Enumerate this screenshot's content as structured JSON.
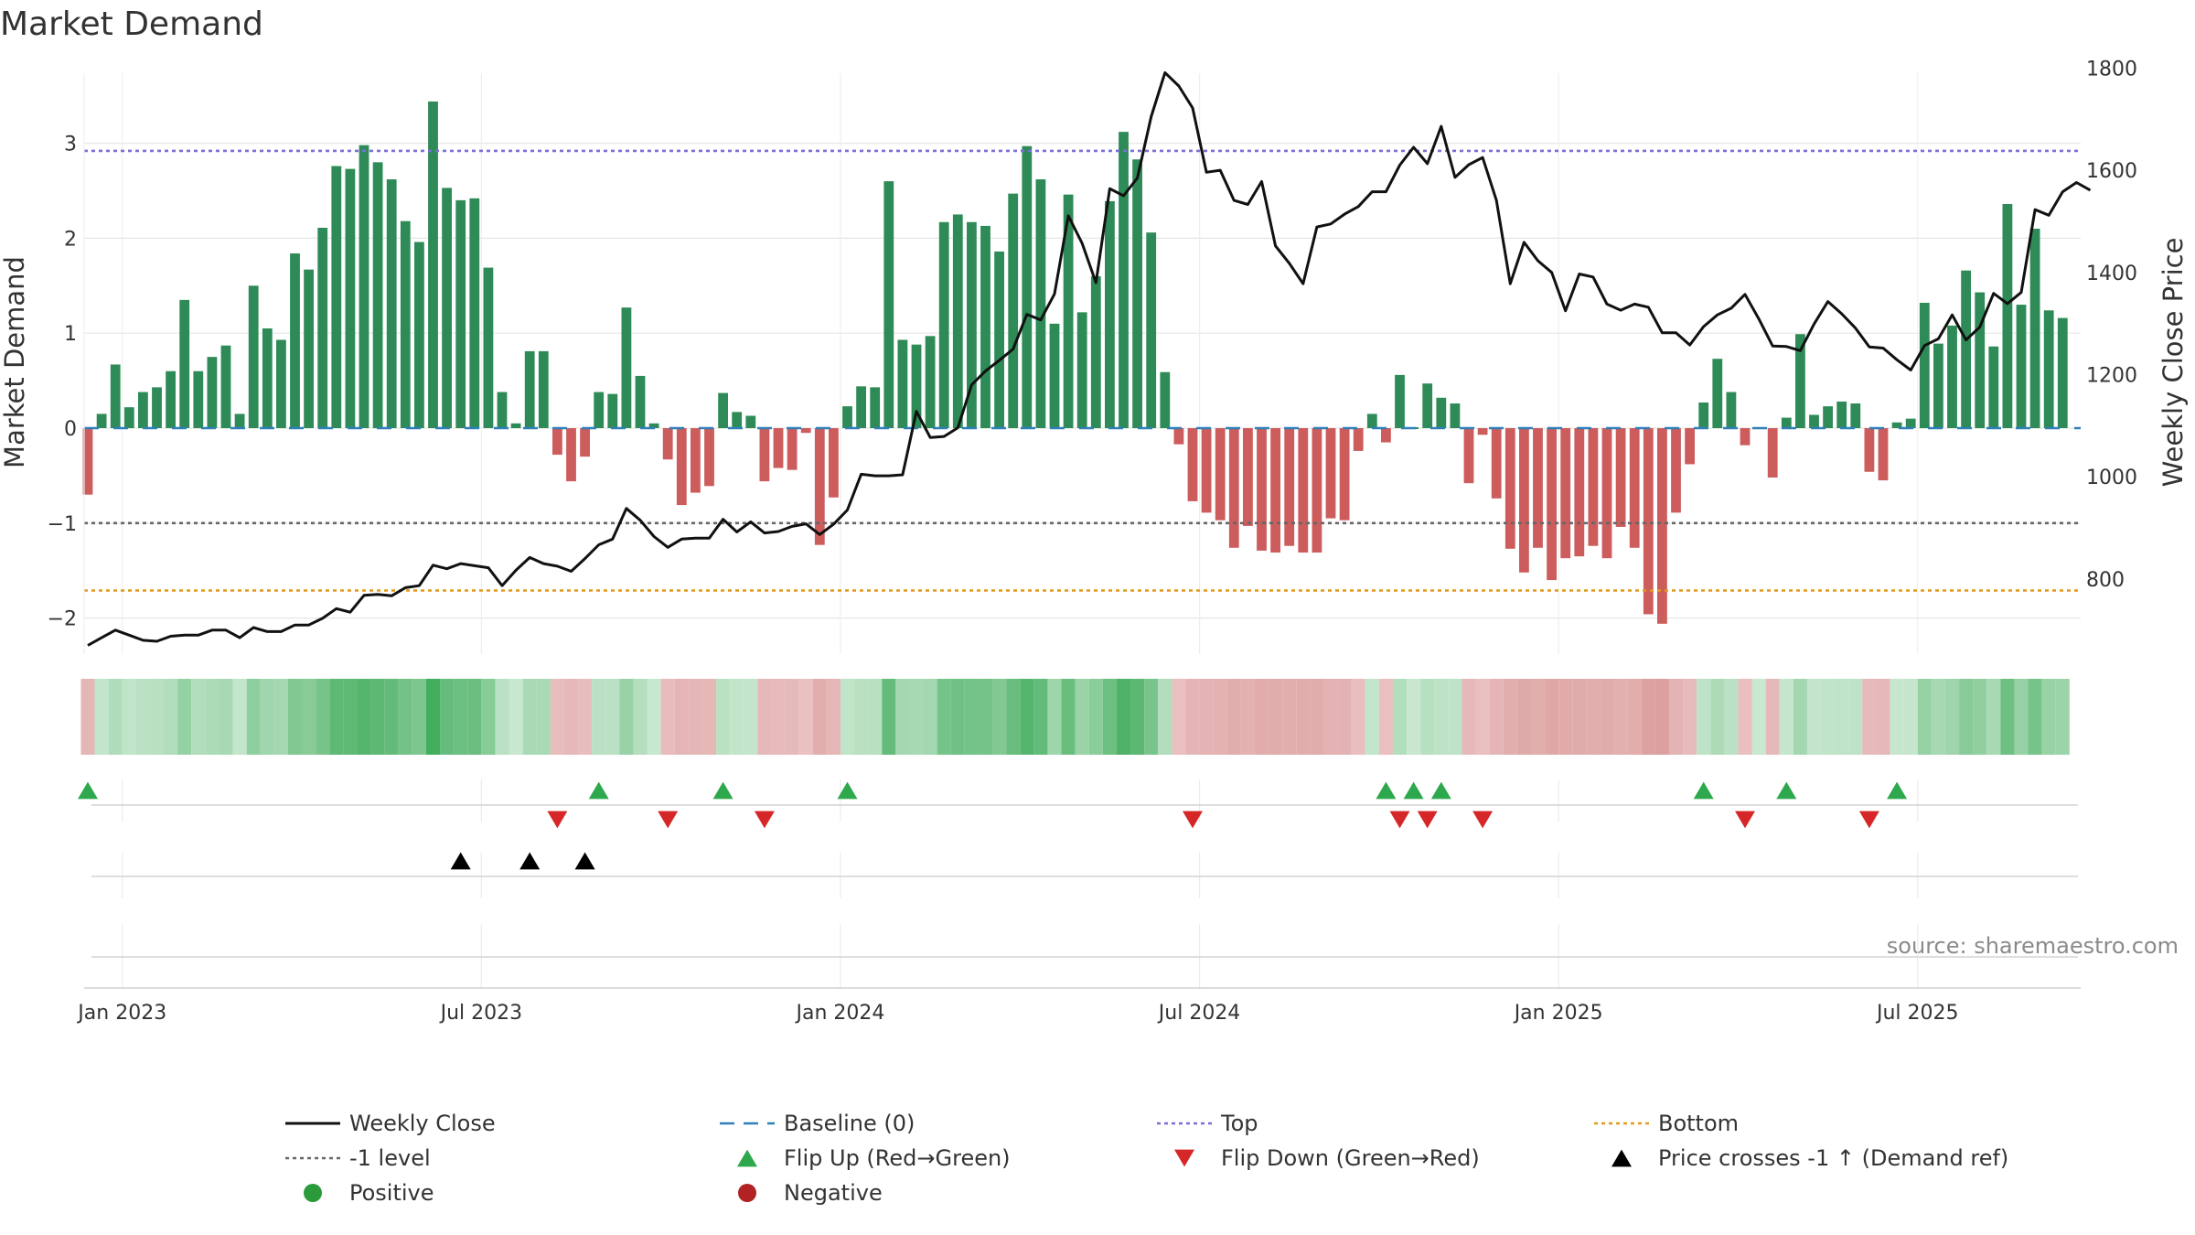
{
  "chart_data": {
    "type": "bar",
    "title": "Market Demand",
    "ylabel": "Market Demand",
    "y2label": "Weekly Close Price",
    "source": "source: sharemaestro.com",
    "ylim": [
      -2.4,
      3.6
    ],
    "y2lim": [
      653,
      1790
    ],
    "y_ticks": [
      "3",
      "2",
      "1",
      "0",
      "−1",
      "−2"
    ],
    "y_tick_values": [
      3,
      2,
      1,
      0,
      -1,
      -2
    ],
    "y2_ticks": [
      "1800",
      "1600",
      "1400",
      "1200",
      "1000",
      "800"
    ],
    "y2_tick_values": [
      1800,
      1600,
      1400,
      1200,
      1000,
      800
    ],
    "x_ticks": [
      "Jan 2023",
      "Jul 2023",
      "Jan 2024",
      "Jul 2024",
      "Jan 2025",
      "Jul 2025"
    ],
    "x_tick_weeks": [
      2.5,
      28.5,
      54.5,
      80.5,
      106.5,
      132.5
    ],
    "x_domain_weeks": [
      -0.5,
      142.5
    ],
    "reference_lines": {
      "top": 2.92,
      "minus_one": -1.0,
      "bottom": -1.71,
      "baseline": 0
    },
    "demand": [
      -0.7,
      0.15,
      0.67,
      0.22,
      0.38,
      0.43,
      0.6,
      1.35,
      0.6,
      0.75,
      0.87,
      0.15,
      1.5,
      1.05,
      0.93,
      1.84,
      1.67,
      2.11,
      2.76,
      2.73,
      2.98,
      2.8,
      2.62,
      2.18,
      1.96,
      3.44,
      2.53,
      2.4,
      2.42,
      1.69,
      0.38,
      0.05,
      0.81,
      0.81,
      -0.28,
      -0.56,
      -0.3,
      0.38,
      0.36,
      1.27,
      0.55,
      0.05,
      -0.33,
      -0.81,
      -0.68,
      -0.61,
      0.37,
      0.17,
      0.13,
      -0.56,
      -0.42,
      -0.44,
      -0.05,
      -1.23,
      -0.73,
      0.23,
      0.44,
      0.43,
      2.6,
      0.93,
      0.88,
      0.97,
      2.17,
      2.25,
      2.17,
      2.13,
      1.86,
      2.47,
      2.97,
      2.62,
      1.1,
      2.46,
      1.22,
      1.6,
      2.39,
      3.12,
      2.83,
      2.06,
      0.59,
      -0.17,
      -0.77,
      -0.89,
      -0.97,
      -1.26,
      -1.03,
      -1.29,
      -1.31,
      -1.24,
      -1.31,
      -1.31,
      -0.95,
      -0.97,
      -0.24,
      0.15,
      -0.15,
      0.56,
      0.01,
      0.47,
      0.32,
      0.26,
      -0.58,
      -0.07,
      -0.74,
      -1.27,
      -1.52,
      -1.26,
      -1.6,
      -1.37,
      -1.35,
      -1.24,
      -1.37,
      -1.04,
      -1.26,
      -1.96,
      -2.06,
      -0.89,
      -0.38,
      0.27,
      0.73,
      0.38,
      -0.18,
      0.0,
      -0.52,
      0.11,
      0.99,
      0.14,
      0.23,
      0.28,
      0.26,
      -0.46,
      -0.55,
      0.06,
      0.1,
      1.32,
      0.89,
      1.08,
      1.66,
      1.43,
      0.86,
      2.36,
      1.3,
      2.1,
      1.24,
      1.16
    ],
    "weekly_close": [
      670,
      685,
      700,
      690,
      680,
      678,
      688,
      690,
      690,
      700,
      700,
      685,
      705,
      697,
      697,
      710,
      710,
      723,
      742,
      735,
      768,
      770,
      767,
      783,
      787,
      827,
      820,
      830,
      826,
      822,
      787,
      817,
      842,
      830,
      825,
      815,
      840,
      867,
      878,
      938,
      915,
      883,
      862,
      878,
      880,
      880,
      917,
      892,
      912,
      890,
      893,
      903,
      908,
      887,
      907,
      935,
      1005,
      1002,
      1002,
      1004,
      1128,
      1077,
      1079,
      1096,
      1180,
      1207,
      1228,
      1250,
      1318,
      1307,
      1358,
      1511,
      1457,
      1380,
      1564,
      1550,
      1585,
      1705,
      1791,
      1765,
      1722,
      1596,
      1600,
      1541,
      1533,
      1578,
      1452,
      1418,
      1378,
      1489,
      1495,
      1514,
      1529,
      1558,
      1558,
      1610,
      1645,
      1613,
      1686,
      1586,
      1611,
      1625,
      1541,
      1378,
      1459,
      1423,
      1400,
      1325,
      1397,
      1391,
      1338,
      1326,
      1338,
      1332,
      1282,
      1282,
      1258,
      1294,
      1317,
      1330,
      1357,
      1309,
      1256,
      1255,
      1247,
      1299,
      1343,
      1319,
      1291,
      1254,
      1252,
      1229,
      1209,
      1257,
      1270,
      1317,
      1268,
      1293,
      1359,
      1339,
      1361,
      1523,
      1512,
      1558,
      1576,
      1561
    ],
    "flip_up_weeks": [
      0,
      37,
      46,
      55,
      94,
      96,
      98,
      117,
      123,
      131
    ],
    "flip_down_weeks": [
      34,
      42,
      49,
      80,
      95,
      97,
      101,
      120,
      129
    ],
    "price_cross_weeks": [
      27,
      32,
      36
    ]
  },
  "legend": [
    {
      "label": "Weekly Close",
      "marker": "line-solid",
      "color": "#111111"
    },
    {
      "label": "Baseline (0)",
      "marker": "line-dashed",
      "color": "#2f7fb8"
    },
    {
      "label": "Top",
      "marker": "line-dotted",
      "color": "#7b6fd6"
    },
    {
      "label": "Bottom",
      "marker": "line-dotted",
      "color": "#e09a1a"
    },
    {
      "label": "-1 level",
      "marker": "line-dotted",
      "color": "#666666"
    },
    {
      "label": "Flip Up (Red→Green)",
      "marker": "triangle-up",
      "color": "#2ea84c"
    },
    {
      "label": "Flip Down (Green→Red)",
      "marker": "triangle-down",
      "color": "#d62728"
    },
    {
      "label": "Price crosses -1 ↑ (Demand ref)",
      "marker": "triangle-up",
      "color": "#000000"
    },
    {
      "label": "Positive",
      "marker": "circle",
      "color": "#2a9a3a"
    },
    {
      "label": "Negative",
      "marker": "circle",
      "color": "#b22222"
    }
  ],
  "colors": {
    "positive_bar": "#2e8b57",
    "negative_bar": "#cd5c5c",
    "close_line": "#111111",
    "baseline": "#2f7fb8",
    "top": "#7b6fd6",
    "bottom": "#e09a1a",
    "minus_one": "#666666",
    "flip_up": "#2ea84c",
    "flip_down": "#d62728",
    "price_cross": "#000000",
    "grid": "#e6e6e6"
  }
}
